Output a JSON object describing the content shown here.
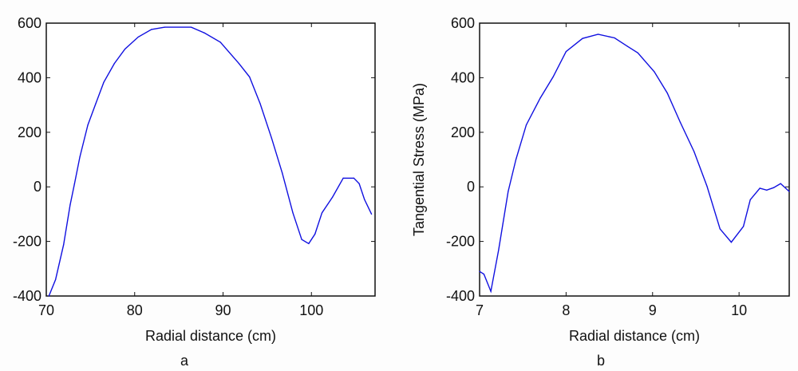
{
  "chart_data": [
    {
      "type": "line",
      "caption": "a",
      "xlabel": "Radial distance (cm)",
      "ylabel": "",
      "xlim": [
        70,
        107.2
      ],
      "ylim": [
        -400,
        600
      ],
      "xticks": [
        "70",
        "80",
        "90",
        "100"
      ],
      "yticks": [
        "-400",
        "-200",
        "0",
        "200",
        "400",
        "600"
      ],
      "grid": false,
      "line_color": "#1010e0",
      "x": [
        70.3,
        71.05,
        71.96,
        72.7,
        73.2,
        73.8,
        74.7,
        75.6,
        76.5,
        77.7,
        78.9,
        80.4,
        81.9,
        83.4,
        86.4,
        87.9,
        89.7,
        91.8,
        93.0,
        94.2,
        95.5,
        96.7,
        97.9,
        98.9,
        99.7,
        100.4,
        101.2,
        102.4,
        103.6,
        104.8,
        105.4,
        106.0,
        106.8
      ],
      "y": [
        -400,
        -340,
        -212,
        -66,
        12,
        110,
        227,
        305,
        383,
        452,
        505,
        549,
        577,
        585,
        585,
        564,
        530,
        452,
        403,
        305,
        178,
        51,
        -95,
        -193,
        -208,
        -173,
        -95,
        -37,
        32,
        32,
        12,
        -46,
        -100
      ]
    },
    {
      "type": "line",
      "caption": "b",
      "xlabel": "Radial distance (cm)",
      "ylabel": "Tangential Stress (MPa)",
      "xlim": [
        7,
        10.58
      ],
      "ylim": [
        -400,
        600
      ],
      "xticks": [
        "7",
        "8",
        "9",
        "10"
      ],
      "yticks": [
        "-400",
        "-200",
        "0",
        "200",
        "400",
        "600"
      ],
      "grid": false,
      "line_color": "#1010e0",
      "x": [
        7.0,
        7.05,
        7.13,
        7.22,
        7.33,
        7.42,
        7.54,
        7.7,
        7.85,
        8.0,
        8.19,
        8.37,
        8.56,
        8.71,
        8.83,
        9.02,
        9.17,
        9.32,
        9.48,
        9.63,
        9.78,
        9.91,
        10.05,
        10.13,
        10.24,
        10.32,
        10.4,
        10.48,
        10.58
      ],
      "y": [
        -310,
        -320,
        -383,
        -232,
        -17,
        100,
        227,
        325,
        403,
        496,
        544,
        559,
        546,
        515,
        491,
        422,
        344,
        237,
        129,
        2,
        -154,
        -203,
        -145,
        -47,
        -5,
        -12,
        -3,
        12,
        -17
      ]
    }
  ]
}
